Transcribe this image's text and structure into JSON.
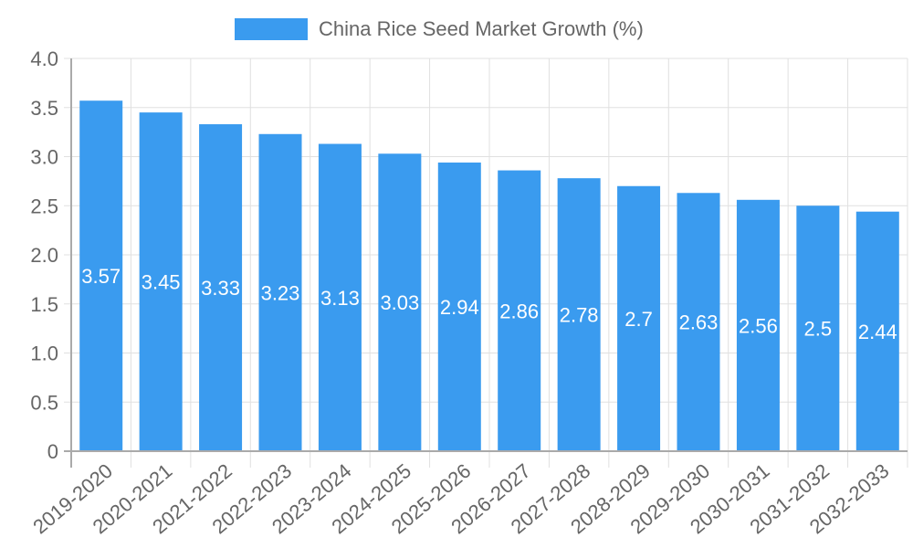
{
  "legend": {
    "label": "China Rice Seed Market Growth (%)",
    "color": "#3a9bef"
  },
  "chart_data": {
    "type": "bar",
    "title": "",
    "xlabel": "",
    "ylabel": "",
    "ylim": [
      0,
      4.0
    ],
    "yticks": [
      "0",
      "0.5",
      "1.0",
      "1.5",
      "2.0",
      "2.5",
      "3.0",
      "3.5",
      "4.0"
    ],
    "grid": true,
    "legend_position": "top",
    "categories": [
      "2019-2020",
      "2020-2021",
      "2021-2022",
      "2022-2023",
      "2023-2024",
      "2024-2025",
      "2025-2026",
      "2026-2027",
      "2027-2028",
      "2028-2029",
      "2029-2030",
      "2030-2031",
      "2031-2032",
      "2032-2033"
    ],
    "series": [
      {
        "name": "China Rice Seed Market Growth (%)",
        "color": "#3a9bef",
        "values": [
          3.57,
          3.45,
          3.33,
          3.23,
          3.13,
          3.03,
          2.94,
          2.86,
          2.78,
          2.7,
          2.63,
          2.56,
          2.5,
          2.44
        ],
        "labels": [
          "3.57",
          "3.45",
          "3.33",
          "3.23",
          "3.13",
          "3.03",
          "2.94",
          "2.86",
          "2.78",
          "2.7",
          "2.63",
          "2.56",
          "2.5",
          "2.44"
        ]
      }
    ]
  }
}
